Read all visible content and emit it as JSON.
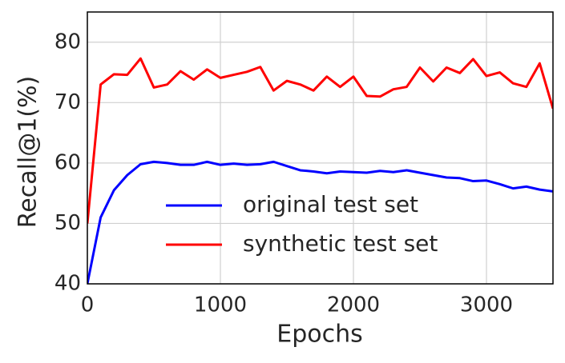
{
  "chart_data": {
    "type": "line",
    "x_label": "Epochs",
    "y_label": "Recall@1(%)",
    "x": [
      0,
      100,
      200,
      300,
      400,
      500,
      600,
      700,
      800,
      900,
      1000,
      1100,
      1200,
      1300,
      1400,
      1500,
      1600,
      1700,
      1800,
      1900,
      2000,
      2100,
      2200,
      2300,
      2400,
      2500,
      2600,
      2700,
      2800,
      2900,
      3000,
      3100,
      3200,
      3300,
      3400,
      3500
    ],
    "series": [
      {
        "name": "original test set",
        "color": "#0000ff",
        "values": [
          40,
          51,
          55.5,
          58,
          59.8,
          60.2,
          60,
          59.7,
          59.7,
          60.2,
          59.7,
          59.9,
          59.7,
          59.8,
          60.2,
          59.5,
          58.8,
          58.6,
          58.3,
          58.6,
          58.5,
          58.4,
          58.7,
          58.5,
          58.8,
          58.4,
          58,
          57.6,
          57.5,
          57,
          57.1,
          56.5,
          55.8,
          56.1,
          55.6,
          55.3
        ]
      },
      {
        "name": "synthetic test set",
        "color": "#ff0000",
        "values": [
          50,
          73,
          74.7,
          74.6,
          77.3,
          72.5,
          73,
          75.2,
          73.8,
          75.5,
          74.1,
          74.6,
          75.1,
          75.9,
          72,
          73.6,
          73,
          72,
          74.3,
          72.6,
          74.3,
          71.1,
          71,
          72.2,
          72.6,
          75.8,
          73.5,
          75.8,
          74.9,
          77.2,
          74.4,
          75,
          73.2,
          72.6,
          76.5,
          69
        ]
      }
    ],
    "xlim": [
      0,
      3500
    ],
    "xticks": [
      0,
      1000,
      2000,
      3000
    ],
    "ylim": [
      40,
      85
    ],
    "yticks": [
      40,
      50,
      60,
      70,
      80
    ],
    "grid": true,
    "legend": "lower center"
  }
}
